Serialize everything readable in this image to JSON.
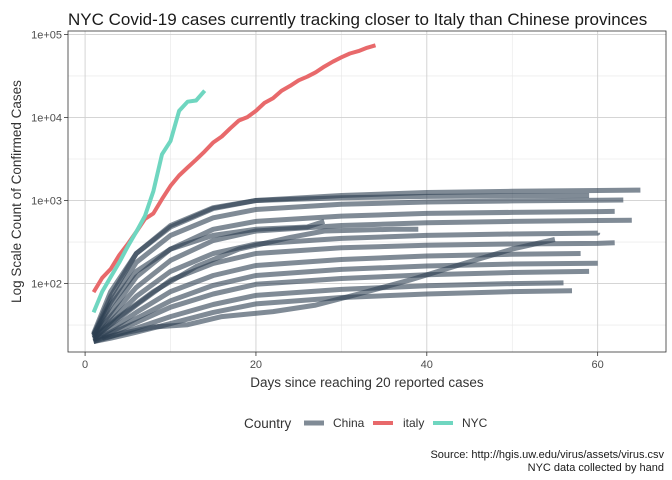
{
  "chart_data": {
    "type": "line",
    "title": "NYC Covid-19 cases currently tracking closer to Italy than Chinese provinces",
    "xlabel": "Days since reaching 20 reported cases",
    "ylabel": "Log Scale Count of Confirmed Cases",
    "xlim": [
      -2,
      68
    ],
    "ylim": [
      15,
      110000
    ],
    "y_scale": "log10",
    "x_ticks": [
      0,
      20,
      40,
      60
    ],
    "x_tick_labels": [
      "0",
      "20",
      "40",
      "60"
    ],
    "y_ticks": [
      100,
      1000,
      10000,
      100000
    ],
    "y_tick_labels": [
      "1e+02",
      "1e+03",
      "1e+04",
      "1e+05"
    ],
    "grid": true,
    "legend": {
      "title": "Country",
      "position": "bottom",
      "entries": [
        {
          "label": "China",
          "color": "#2c3e50"
        },
        {
          "label": "italy",
          "color": "#e8696b"
        },
        {
          "label": "NYC",
          "color": "#6fd6c0"
        }
      ]
    },
    "caption": [
      "Source: http://hgis.uw.edu/virus/assets/virus.csv",
      "NYC data collected by hand"
    ],
    "series": [
      {
        "name": "italy",
        "color": "#e8696b",
        "x": [
          1,
          2,
          3,
          4,
          5,
          6,
          7,
          8,
          9,
          10,
          11,
          12,
          13,
          14,
          15,
          16,
          17,
          18,
          19,
          20,
          21,
          22,
          23,
          24,
          25,
          26,
          27,
          28,
          29,
          30,
          31,
          32,
          33,
          34
        ],
        "y": [
          79,
          117,
          150,
          220,
          300,
          420,
          600,
          700,
          1040,
          1500,
          2000,
          2500,
          3100,
          3900,
          5000,
          5900,
          7400,
          9200,
          10100,
          12000,
          15000,
          17000,
          21000,
          24000,
          28000,
          31000,
          35000,
          41000,
          47000,
          53000,
          59000,
          63000,
          69000,
          74000
        ]
      },
      {
        "name": "NYC",
        "color": "#6fd6c0",
        "x": [
          1,
          2,
          3,
          4,
          5,
          6,
          7,
          8,
          9,
          10,
          11,
          12,
          13,
          14
        ],
        "y": [
          45,
          80,
          120,
          180,
          280,
          420,
          650,
          1300,
          3600,
          5200,
          12000,
          15500,
          16000,
          21000
        ]
      },
      {
        "name": "China",
        "color": "#2c3e50",
        "x": [
          1,
          3,
          6,
          10,
          15,
          20,
          30,
          40,
          50,
          60,
          65
        ],
        "y": [
          25,
          80,
          230,
          480,
          800,
          1000,
          1150,
          1250,
          1290,
          1320,
          1335
        ]
      },
      {
        "name": "China",
        "color": "#2c3e50",
        "x": [
          1,
          3,
          6,
          10,
          15,
          20,
          30,
          40,
          50,
          60,
          63
        ],
        "y": [
          24,
          60,
          180,
          380,
          620,
          780,
          900,
          960,
          990,
          1010,
          1015
        ]
      },
      {
        "name": "China",
        "color": "#2c3e50",
        "x": [
          1,
          3,
          6,
          10,
          15,
          20,
          30,
          40,
          50,
          60,
          62
        ],
        "y": [
          23,
          45,
          120,
          260,
          450,
          560,
          650,
          700,
          720,
          735,
          740
        ]
      },
      {
        "name": "China",
        "color": "#2c3e50",
        "x": [
          1,
          3,
          6,
          10,
          15,
          20,
          30,
          40,
          50,
          60,
          64
        ],
        "y": [
          23,
          40,
          90,
          190,
          330,
          430,
          500,
          540,
          560,
          575,
          580
        ]
      },
      {
        "name": "China",
        "color": "#2c3e50",
        "x": [
          1,
          3,
          6,
          10,
          15,
          20,
          30,
          40,
          50,
          60,
          60
        ],
        "y": [
          22,
          35,
          70,
          140,
          230,
          300,
          350,
          380,
          395,
          405,
          410
        ]
      },
      {
        "name": "China",
        "color": "#2c3e50",
        "x": [
          1,
          3,
          6,
          10,
          15,
          20,
          30,
          40,
          50,
          60,
          62
        ],
        "y": [
          22,
          32,
          55,
          110,
          175,
          230,
          270,
          290,
          300,
          305,
          310
        ]
      },
      {
        "name": "China",
        "color": "#2c3e50",
        "x": [
          1,
          3,
          6,
          10,
          15,
          20,
          30,
          40,
          50,
          58
        ],
        "y": [
          21,
          28,
          45,
          80,
          125,
          165,
          195,
          215,
          225,
          230
        ]
      },
      {
        "name": "China",
        "color": "#2c3e50",
        "x": [
          1,
          3,
          6,
          10,
          15,
          20,
          30,
          40,
          50,
          60
        ],
        "y": [
          21,
          26,
          38,
          62,
          95,
          125,
          148,
          163,
          172,
          176
        ]
      },
      {
        "name": "China",
        "color": "#2c3e50",
        "x": [
          1,
          3,
          6,
          10,
          15,
          20,
          30,
          40,
          50,
          59
        ],
        "y": [
          20,
          25,
          34,
          52,
          75,
          98,
          115,
          128,
          136,
          140
        ]
      },
      {
        "name": "China",
        "color": "#2c3e50",
        "x": [
          1,
          3,
          6,
          10,
          15,
          20,
          30,
          40,
          50,
          56
        ],
        "y": [
          20,
          23,
          29,
          40,
          56,
          72,
          85,
          94,
          100,
          102
        ]
      },
      {
        "name": "China",
        "color": "#2c3e50",
        "x": [
          1,
          3,
          6,
          10,
          15,
          20,
          30,
          40,
          50,
          57
        ],
        "y": [
          20,
          22,
          26,
          33,
          45,
          57,
          68,
          75,
          80,
          82
        ]
      },
      {
        "name": "China",
        "color": "#2c3e50",
        "x": [
          2,
          5,
          8,
          12,
          16,
          22,
          27,
          32,
          38,
          44,
          50,
          55
        ],
        "y": [
          22,
          26,
          30,
          32,
          40,
          46,
          55,
          75,
          110,
          170,
          260,
          340
        ]
      },
      {
        "name": "China",
        "color": "#2c3e50",
        "x": [
          1,
          4,
          8,
          13,
          18,
          24,
          28,
          32,
          36,
          39
        ],
        "y": [
          22,
          40,
          80,
          160,
          260,
          360,
          430,
          440,
          450,
          452
        ]
      },
      {
        "name": "China",
        "color": "#2c3e50",
        "x": [
          1,
          3,
          6,
          10,
          15,
          20,
          26,
          28
        ],
        "y": [
          24,
          55,
          140,
          260,
          380,
          450,
          480,
          560
        ]
      },
      {
        "name": "China",
        "color": "#2c3e50",
        "x": [
          1,
          3,
          6,
          10,
          15,
          20,
          30,
          40,
          50,
          59
        ],
        "y": [
          24,
          70,
          230,
          500,
          820,
          1000,
          1080,
          1120,
          1140,
          1150
        ]
      }
    ]
  }
}
